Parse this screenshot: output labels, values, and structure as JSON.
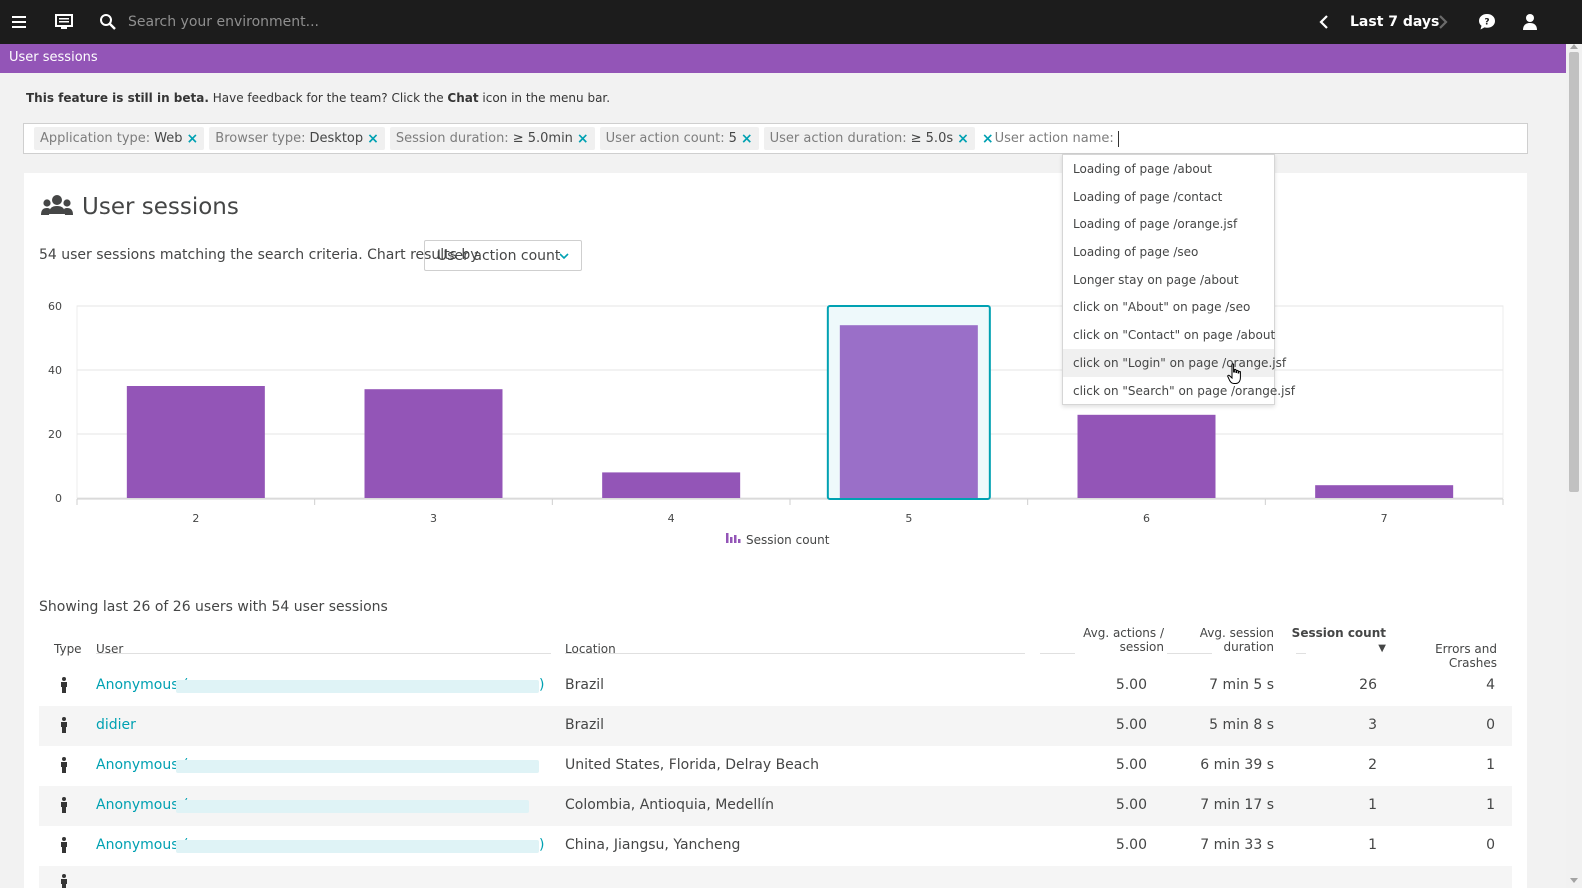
{
  "topbar": {
    "menu_icon": "hamburger-menu-icon",
    "app_icon": "monitor-icon",
    "search_placeholder": "Search your environment...",
    "timeframe": "Last 7 days"
  },
  "page": {
    "title": "User sessions"
  },
  "beta": {
    "bold": "This feature is still in beta.",
    "text1": " Have feedback for the team? Click the ",
    "chat": "Chat",
    "text2": " icon in the menu bar."
  },
  "filters": [
    {
      "key": "Application type:",
      "value": "Web"
    },
    {
      "key": "Browser type:",
      "value": "Desktop"
    },
    {
      "key": "Session duration:",
      "value": "≥ 5.0min"
    },
    {
      "key": "User action count:",
      "value": "5"
    },
    {
      "key": "User action duration:",
      "value": "≥ 5.0s"
    }
  ],
  "pending_filter": "User action name:",
  "dropdown_items": [
    "Loading of page /about",
    "Loading of page /contact",
    "Loading of page /orange.jsf",
    "Loading of page /seo",
    "Longer stay on page /about",
    "click on \"About\" on page /seo",
    "click on \"Contact\" on page /about",
    "click on \"Login\" on page /orange.jsf",
    "click on \"Search\" on page /orange.jsf"
  ],
  "card": {
    "title": "User sessions",
    "subtitle": "54 user sessions matching the search criteria. Chart results by",
    "chart_by": "User action count"
  },
  "chart_data": {
    "type": "bar",
    "categories": [
      "2",
      "3",
      "4",
      "5",
      "6",
      "7"
    ],
    "series": [
      {
        "name": "Session count",
        "values": [
          35,
          34,
          8,
          54,
          26,
          4
        ]
      }
    ],
    "yticks": [
      "0",
      "20",
      "40",
      "60"
    ],
    "ylim": [
      0,
      60
    ],
    "selected_category": "5",
    "color": "#9355b7",
    "legend": "Session count"
  },
  "table": {
    "showing": "Showing last 26 of 26 users with 54 user sessions",
    "headers": {
      "type": "Type",
      "user": "User",
      "location": "Location",
      "avg_actions_1": "Avg. actions /",
      "avg_actions_2": "session",
      "avg_duration_1": "Avg. session",
      "avg_duration_2": "duration",
      "session_count": "Session count",
      "sort": "▼",
      "errors": "Errors and Crashes"
    },
    "rows": [
      {
        "user": "Anonymous (",
        "suffix": ")",
        "location": "Brazil",
        "avg_actions": "5.00",
        "avg_duration": "7 min 5 s",
        "sessions": "26",
        "errors": "4"
      },
      {
        "user": "didier",
        "suffix": "",
        "location": "Brazil",
        "avg_actions": "5.00",
        "avg_duration": "5 min 8 s",
        "sessions": "3",
        "errors": "0"
      },
      {
        "user": "Anonymous (",
        "suffix": "",
        "location": "United States, Florida, Delray Beach",
        "avg_actions": "5.00",
        "avg_duration": "6 min 39 s",
        "sessions": "2",
        "errors": "1"
      },
      {
        "user": "Anonymous (",
        "suffix": "",
        "location": "Colombia, Antioquia, Medellín",
        "avg_actions": "5.00",
        "avg_duration": "7 min 17 s",
        "sessions": "1",
        "errors": "1"
      },
      {
        "user": "Anonymous (",
        "suffix": ")",
        "location": "China, Jiangsu, Yancheng",
        "avg_actions": "5.00",
        "avg_duration": "7 min 33 s",
        "sessions": "1",
        "errors": "0"
      }
    ]
  }
}
